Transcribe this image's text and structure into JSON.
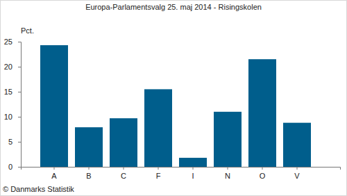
{
  "chart_data": {
    "type": "bar",
    "title": "Europa-Parlamentsvalg 25. maj 2014 - Risingskolen",
    "y_label": "Pct.",
    "annotations": [
      "© Danmarks Statistik"
    ],
    "categories": [
      "A",
      "B",
      "C",
      "F",
      "I",
      "N",
      "O",
      "V"
    ],
    "values": [
      24.3,
      7.9,
      9.7,
      15.5,
      1.8,
      11.0,
      21.5,
      8.8
    ],
    "color": "#005e8c",
    "ylim": [
      0,
      25
    ],
    "yticks": [
      0,
      5,
      10,
      15,
      20,
      25
    ],
    "grid": false
  }
}
